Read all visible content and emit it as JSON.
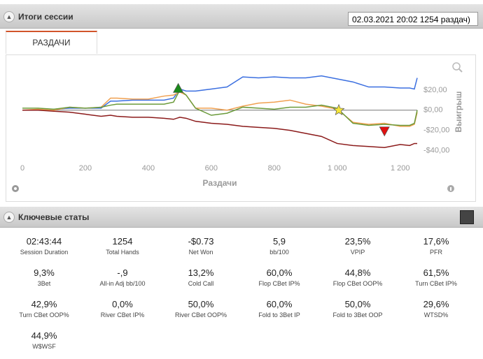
{
  "header": {
    "title": "Итоги сессии",
    "session_select": "02.03.2021 20:02 1254 раздач)"
  },
  "tab": "РАЗДАЧИ",
  "chart_data": {
    "type": "line",
    "x": [
      0,
      50,
      100,
      150,
      200,
      250,
      280,
      300,
      350,
      400,
      450,
      480,
      500,
      520,
      550,
      600,
      650,
      700,
      750,
      800,
      850,
      900,
      950,
      1000,
      1050,
      1100,
      1150,
      1200,
      1230,
      1245,
      1254
    ],
    "series": [
      {
        "color": "#3b6fe0",
        "values": [
          0,
          0,
          1,
          2,
          2,
          2,
          9,
          9,
          10,
          10,
          10,
          12,
          21,
          19,
          19,
          21,
          23,
          33,
          32,
          33,
          32,
          32,
          34,
          31,
          28,
          23,
          23,
          22,
          22,
          21,
          32
        ]
      },
      {
        "color": "#f0a050",
        "values": [
          0,
          1,
          0,
          3,
          2,
          3,
          12,
          12,
          11,
          11,
          14,
          15,
          18,
          15,
          2,
          2,
          0,
          4,
          7,
          8,
          10,
          6,
          4,
          1,
          -12,
          -14,
          -13,
          -16,
          -16,
          -14,
          -2
        ]
      },
      {
        "color": "#6a9a3a",
        "values": [
          2,
          2,
          1,
          3,
          2,
          3,
          5,
          6,
          6,
          6,
          6,
          8,
          20,
          15,
          2,
          -5,
          -3,
          3,
          2,
          1,
          3,
          3,
          5,
          2,
          -13,
          -15,
          -14,
          -15,
          -15,
          -13,
          0
        ]
      },
      {
        "color": "#8b1a1a",
        "values": [
          0,
          0,
          -1,
          -2,
          -4,
          -6,
          -5,
          -6,
          -7,
          -7,
          -8,
          -9,
          -7,
          -8,
          -11,
          -13,
          -14,
          -16,
          -17,
          -18,
          -20,
          -23,
          -26,
          -33,
          -35,
          -36,
          -37,
          -34,
          -35,
          -33,
          -33
        ]
      }
    ],
    "markers": [
      {
        "x": 495,
        "y": 21,
        "color": "#1a8a1a",
        "shape": "triangle-up"
      },
      {
        "x": 1005,
        "y": 0,
        "color": "#f5e63a",
        "shape": "star"
      },
      {
        "x": 1150,
        "y": -20,
        "color": "#e01010",
        "shape": "triangle-down"
      }
    ],
    "xlim": [
      0,
      1254
    ],
    "xticks": [
      0,
      200,
      400,
      600,
      800,
      {
        "value": 1000,
        "label": "1 000"
      },
      {
        "value": 1200,
        "label": "1 200"
      }
    ],
    "ylim": [
      -50,
      40
    ],
    "yticks": [
      {
        "value": 20,
        "label": "$20,00"
      },
      {
        "value": 0,
        "label": "$0,00"
      },
      {
        "value": -20,
        "label": "-$20,00"
      },
      {
        "value": -40,
        "label": "-$40,00"
      }
    ],
    "x_label": "Раздачи",
    "y_label": "Выигрыш",
    "zero_line": true
  },
  "stats_title": "Ключевые статы",
  "stats": [
    {
      "value": "02:43:44",
      "label": "Session Duration"
    },
    {
      "value": "1254",
      "label": "Total Hands"
    },
    {
      "value": "-$0.73",
      "label": "Net Won"
    },
    {
      "value": "5,9",
      "label": "bb/100"
    },
    {
      "value": "23,5%",
      "label": "VPIP"
    },
    {
      "value": "17,6%",
      "label": "PFR"
    },
    {
      "value": "9,3%",
      "label": "3Bet"
    },
    {
      "value": "-,9",
      "label": "All-in Adj bb/100"
    },
    {
      "value": "13,2%",
      "label": "Cold Call"
    },
    {
      "value": "60,0%",
      "label": "Flop CBet IP%"
    },
    {
      "value": "44,8%",
      "label": "Flop CBet OOP%"
    },
    {
      "value": "61,5%",
      "label": "Turn CBet IP%"
    },
    {
      "value": "42,9%",
      "label": "Turn CBet OOP%"
    },
    {
      "value": "0,0%",
      "label": "River CBet IP%"
    },
    {
      "value": "50,0%",
      "label": "River CBet OOP%"
    },
    {
      "value": "60,0%",
      "label": "Fold to 3Bet IP"
    },
    {
      "value": "50,0%",
      "label": "Fold to 3Bet OOP"
    },
    {
      "value": "29,6%",
      "label": "WTSD%"
    },
    {
      "value": "44,9%",
      "label": "W$WSF"
    }
  ]
}
